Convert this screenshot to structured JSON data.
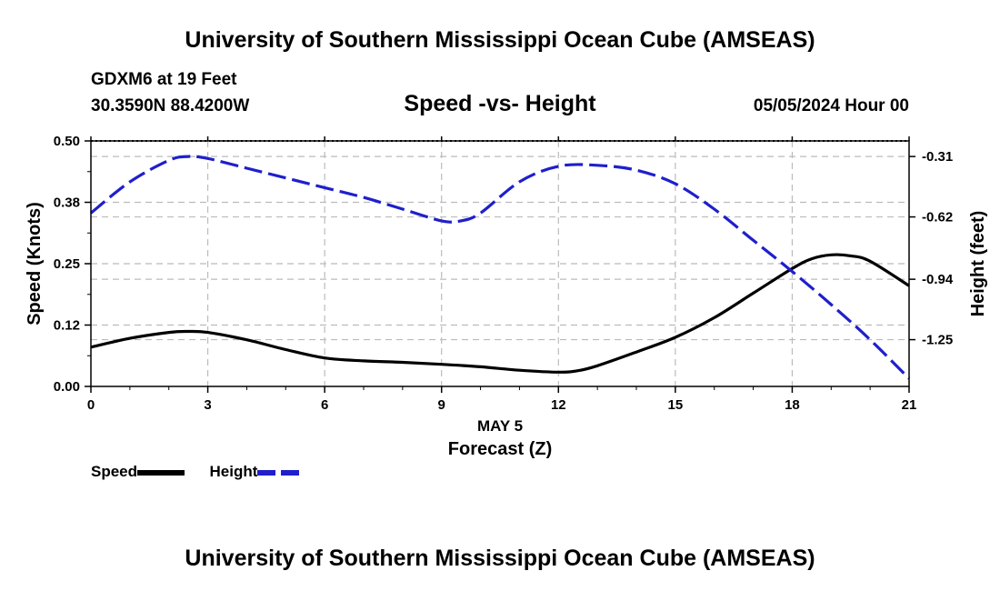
{
  "header": {
    "title": "University of Southern Mississippi Ocean Cube (AMSEAS)",
    "station": "GDXM6 at 19 Feet",
    "coords": "30.3590N  88.4200W",
    "plot_title": "Speed -vs- Height",
    "datetime": "05/05/2024 Hour 00"
  },
  "footer": {
    "title": "University of Southern Mississippi Ocean Cube (AMSEAS)"
  },
  "legend": {
    "speed_label": "Speed",
    "height_label": "Height"
  },
  "colors": {
    "speed": "#000000",
    "height": "#1f1fcc",
    "grid": "#bbbbbb"
  },
  "chart_data": {
    "type": "line",
    "title": "Speed -vs- Height",
    "xlabel": "Forecast (Z)",
    "xlabel_date": "MAY 5",
    "ylabel": "Speed (Knots)",
    "y2label": "Height (feet)",
    "xlim": [
      0,
      21
    ],
    "ylim": [
      0,
      0.5
    ],
    "y2lim": [
      -1.49,
      -0.23
    ],
    "x_ticks": [
      0,
      3,
      6,
      9,
      12,
      15,
      18,
      21
    ],
    "x_tick_labels": [
      "0",
      "3",
      "6",
      "9",
      "12",
      "15",
      "18",
      "21"
    ],
    "y_ticks": [
      0,
      0.125,
      0.25,
      0.375,
      0.5
    ],
    "y_tick_labels": [
      "0.00",
      "0.12",
      "0.25",
      "0.38",
      "0.50"
    ],
    "y2_ticks": [
      -0.31,
      -0.62,
      -0.94,
      -1.25
    ],
    "y2_tick_labels": [
      "-0.31",
      "-0.62",
      "-0.94",
      "-1.25"
    ],
    "grid": true,
    "series": [
      {
        "name": "Speed",
        "axis": "left",
        "style": "solid",
        "x": [
          0,
          1,
          2,
          2.5,
          3,
          4,
          5,
          6,
          7,
          8,
          9,
          10,
          11,
          12,
          12.5,
          13,
          14,
          15,
          16,
          17,
          18,
          18.5,
          19,
          19.5,
          20,
          21
        ],
        "values": [
          0.08,
          0.098,
          0.11,
          0.112,
          0.11,
          0.095,
          0.075,
          0.058,
          0.052,
          0.049,
          0.045,
          0.04,
          0.033,
          0.029,
          0.032,
          0.042,
          0.07,
          0.1,
          0.14,
          0.19,
          0.24,
          0.26,
          0.268,
          0.266,
          0.255,
          0.205
        ]
      },
      {
        "name": "Height",
        "axis": "right",
        "style": "dashed",
        "x": [
          0,
          1,
          2,
          2.5,
          3,
          4,
          5,
          6,
          7,
          8,
          9,
          9.5,
          10,
          11,
          12,
          13,
          14,
          15,
          16,
          17,
          18,
          19,
          20,
          21
        ],
        "values": [
          -0.6,
          -0.44,
          -0.33,
          -0.31,
          -0.32,
          -0.37,
          -0.42,
          -0.47,
          -0.52,
          -0.58,
          -0.64,
          -0.64,
          -0.6,
          -0.44,
          -0.36,
          -0.355,
          -0.38,
          -0.45,
          -0.58,
          -0.74,
          -0.9,
          -1.07,
          -1.25,
          -1.45
        ]
      }
    ]
  }
}
